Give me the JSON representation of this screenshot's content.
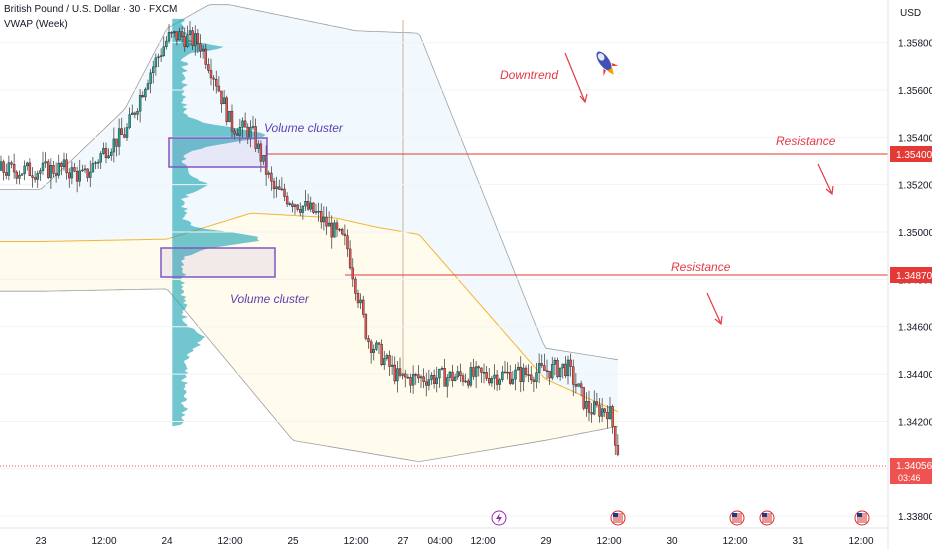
{
  "header": {
    "symbol_title": "British Pound / U.S. Dollar · 30 · FXCM",
    "indicator": "VWAP (Week)"
  },
  "currency_label": "USD",
  "colors": {
    "bull": "#26a69a",
    "bear": "#ef5350",
    "candle_body": "#1a1a1a",
    "resistance": "#e53935",
    "volume_profile": "#26a7b5",
    "vwap_line": "#f5b431",
    "band": "#9e9e9e",
    "cluster_box": "#7e57c2",
    "annotation_text": "#e53946",
    "cluster_text": "#5e3fb0"
  },
  "annotations": {
    "downtrend": "Downtrend",
    "resistance_1": "Resistance",
    "resistance_2": "Resistance",
    "cluster_1": "Volume cluster",
    "cluster_2": "Volume cluster"
  },
  "price_labels": {
    "resistance_1": "1.35400",
    "resistance_2": "1.34870",
    "current_price": "1.34056",
    "countdown": "03:46"
  },
  "event_icons": [
    "lightning-icon",
    "us-flag-icon",
    "us-flag-icon",
    "us-flag-icon",
    "us-flag-icon"
  ],
  "chart_data": {
    "type": "candlestick",
    "symbol": "GBPUSD",
    "interval": "30",
    "y_axis_ticks": [
      "1.35800",
      "1.35600",
      "1.35400",
      "1.35200",
      "1.35000",
      "1.34800",
      "1.34600",
      "1.34400",
      "1.34200",
      "1.34000",
      "1.33800"
    ],
    "ylim": [
      1.3375,
      1.3598
    ],
    "x_axis_ticks": [
      "23",
      "12:00",
      "24",
      "12:00",
      "25",
      "12:00",
      "27",
      "04:00",
      "12:00",
      "29",
      "12:00",
      "30",
      "12:00",
      "31",
      "12:00"
    ],
    "resistance_levels": [
      1.354,
      1.3487
    ],
    "current_price": 1.34056,
    "close_path": [
      [
        "23 00:00",
        1.3526
      ],
      [
        "23 04:00",
        1.3527
      ],
      [
        "23 08:00",
        1.3523
      ],
      [
        "23 12:00",
        1.3535
      ],
      [
        "23 16:00",
        1.3542
      ],
      [
        "23 20:00",
        1.3565
      ],
      [
        "24 00:00",
        1.3582
      ],
      [
        "24 02:00",
        1.3583
      ],
      [
        "24 06:00",
        1.358
      ],
      [
        "24 09:00",
        1.3565
      ],
      [
        "24 12:00",
        1.3545
      ],
      [
        "24 16:00",
        1.3542
      ],
      [
        "24 20:00",
        1.3518
      ],
      [
        "25 04:00",
        1.3508
      ],
      [
        "25 10:00",
        1.3495
      ],
      [
        "25 14:00",
        1.3455
      ],
      [
        "25 20:00",
        1.3438
      ],
      [
        "26 20:00",
        1.344
      ],
      [
        "27 04:00",
        1.3443
      ],
      [
        "27 08:00",
        1.3425
      ],
      [
        "27 12:00",
        1.3425
      ],
      [
        "27 14:00",
        1.3405
      ]
    ],
    "vwap": [
      [
        "23 00:00",
        1.3496
      ],
      [
        "24 00:00",
        1.3497
      ],
      [
        "24 16:00",
        1.3508
      ],
      [
        "25 08:00",
        1.3506
      ],
      [
        "25 16:00",
        1.3502
      ],
      [
        "26 00:00",
        1.3499
      ],
      [
        "27 00:00",
        1.3438
      ],
      [
        "27 14:00",
        1.3424
      ]
    ],
    "vwap_upper_band": [
      [
        "23 00:00",
        1.3518
      ],
      [
        "23 16:00",
        1.3552
      ],
      [
        "24 00:00",
        1.3586
      ],
      [
        "24 08:00",
        1.3596
      ],
      [
        "24 12:00",
        1.3596
      ],
      [
        "24 14:00",
        1.3595
      ],
      [
        "25 12:00",
        1.3585
      ],
      [
        "26 00:00",
        1.3584
      ],
      [
        "27 00:00",
        1.3451
      ],
      [
        "27 14:00",
        1.3446
      ]
    ],
    "vwap_lower_band": [
      [
        "23 00:00",
        1.3475
      ],
      [
        "24 00:00",
        1.3476
      ],
      [
        "25 00:00",
        1.3412
      ],
      [
        "25 08:00",
        1.3409
      ],
      [
        "26 00:00",
        1.3403
      ],
      [
        "27 00:00",
        1.3412
      ],
      [
        "27 14:00",
        1.3418
      ]
    ],
    "volume_profile": {
      "range": [
        1.3418,
        1.359
      ],
      "high_volume_nodes": [
        1.3541,
        1.3497
      ]
    }
  }
}
